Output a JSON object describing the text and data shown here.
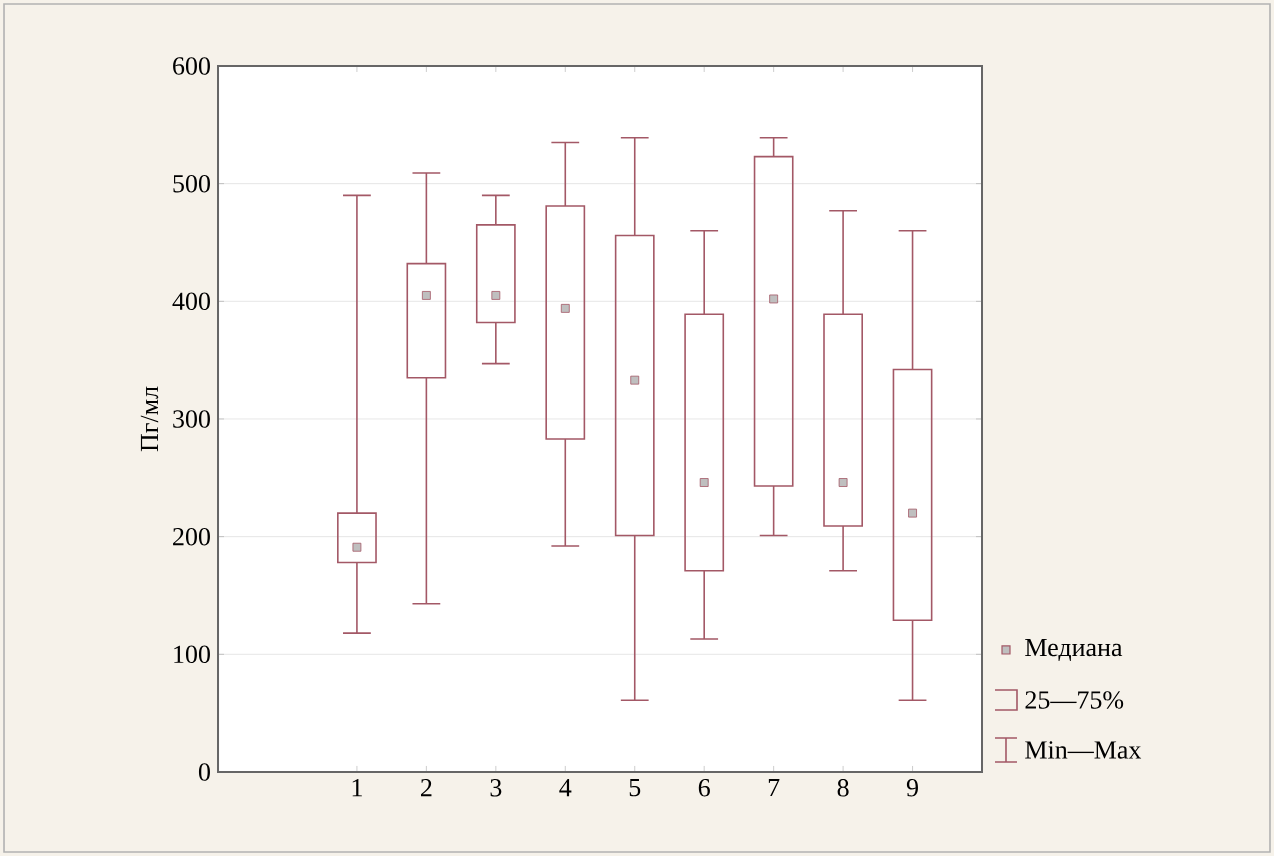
{
  "chart_data": {
    "type": "box",
    "ylabel": "Пг/мл",
    "categories": [
      "1",
      "2",
      "3",
      "4",
      "5",
      "6",
      "7",
      "8",
      "9"
    ],
    "color": "#a35866",
    "ylim": [
      0,
      600
    ],
    "yticks": [
      0,
      100,
      200,
      300,
      400,
      500,
      600
    ],
    "grid": "y",
    "marker": "square",
    "boxes": [
      {
        "low": 118,
        "q1": 178,
        "median": 191,
        "q3": 220,
        "high": 490
      },
      {
        "low": 143,
        "q1": 335,
        "median": 405,
        "q3": 432,
        "high": 509
      },
      {
        "low": 347,
        "q1": 382,
        "median": 405,
        "q3": 465,
        "high": 490
      },
      {
        "low": 192,
        "q1": 283,
        "median": 394,
        "q3": 481,
        "high": 535
      },
      {
        "low": 61,
        "q1": 201,
        "median": 333,
        "q3": 456,
        "high": 539
      },
      {
        "low": 113,
        "q1": 171,
        "median": 246,
        "q3": 389,
        "high": 460
      },
      {
        "low": 201,
        "q1": 243,
        "median": 402,
        "q3": 523,
        "high": 539
      },
      {
        "low": 171,
        "q1": 209,
        "median": 246,
        "q3": 389,
        "high": 477
      },
      {
        "low": 61,
        "q1": 129,
        "median": 220,
        "q3": 342,
        "high": 460
      }
    ],
    "annotations": [
      "Медиана",
      "25—75%",
      "Min—Max"
    ]
  }
}
